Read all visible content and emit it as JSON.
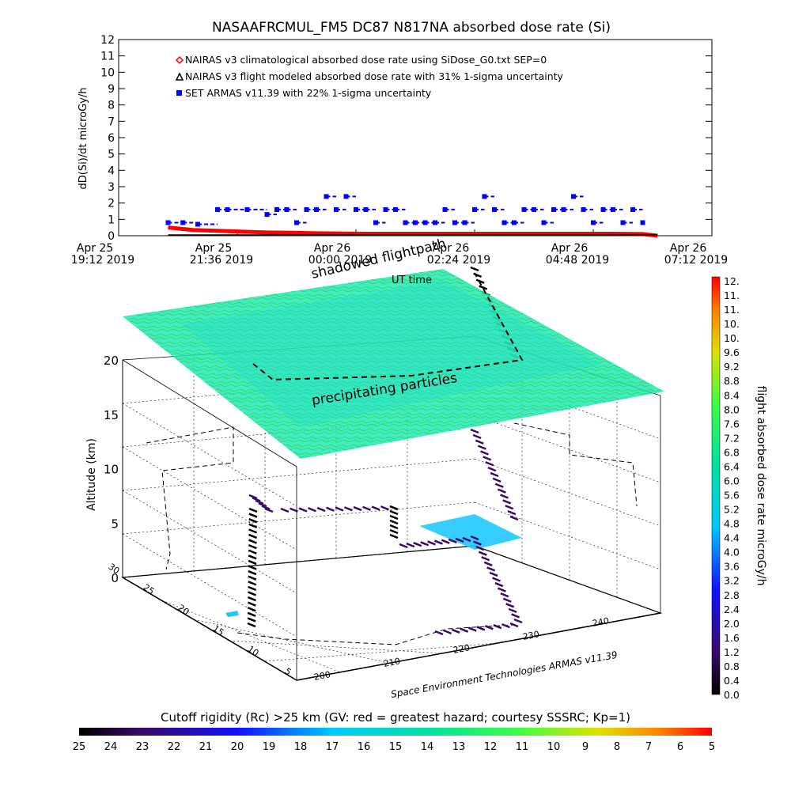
{
  "chart_data": [
    {
      "type": "scatter",
      "title": "NASAAFRCMUL_FM5 DC87 N817NA absorbed dose rate (Si)",
      "ylabel": "dD(Si)/dt microGy/h",
      "xlabel": "UT time",
      "ylim": [
        0,
        12
      ],
      "y_ticks": [
        "0",
        "1",
        "2",
        "3",
        "4",
        "5",
        "6",
        "7",
        "8",
        "9",
        "10",
        "11",
        "12"
      ],
      "x_ticks": [
        {
          "line1": "Apr 25",
          "line2": "19:12 2019"
        },
        {
          "line1": "Apr 25",
          "line2": "21:36 2019"
        },
        {
          "line1": "Apr 26",
          "line2": "00:00 2019"
        },
        {
          "line1": "Apr 26",
          "line2": "02:24 2019"
        },
        {
          "line1": "Apr 26",
          "line2": "04:48 2019"
        },
        {
          "line1": "Apr 26",
          "line2": "07:12 2019"
        }
      ],
      "xlim_hours_from_first_tick": [
        0,
        12
      ],
      "legend": [
        {
          "label": "NAIRAS v3 climatological absorbed dose rate using SiDose_G0.txt SEP=0",
          "color": "#ff0000",
          "marker": "diamond"
        },
        {
          "label": "NAIRAS v3 flight modeled absorbed dose rate with 31% 1-sigma uncertainty",
          "color": "#000000",
          "marker": "triangle"
        },
        {
          "label": "SET ARMAS v11.39 with 22% 1-sigma uncertainty",
          "color": "#0000ff",
          "marker": "square"
        }
      ],
      "legend_position": "top-left",
      "series": [
        {
          "name": "SET ARMAS v11.39 with 22% 1-sigma uncertainty",
          "color": "#0000ff",
          "x_hours": [
            1.0,
            1.3,
            1.6,
            2.0,
            2.2,
            2.6,
            3.0,
            3.2,
            3.4,
            3.6,
            3.8,
            4.0,
            4.2,
            4.4,
            4.6,
            4.8,
            5.0,
            5.2,
            5.4,
            5.6,
            5.8,
            6.0,
            6.2,
            6.4,
            6.6,
            6.8,
            7.0,
            7.2,
            7.4,
            7.6,
            7.8,
            8.0,
            8.2,
            8.4,
            8.6,
            8.8,
            9.0,
            9.2,
            9.4,
            9.6,
            9.8,
            10.0,
            10.2,
            10.4,
            10.6
          ],
          "y": [
            0.8,
            0.8,
            0.7,
            1.6,
            1.6,
            1.6,
            1.3,
            1.6,
            1.6,
            0.8,
            1.6,
            1.6,
            2.4,
            1.6,
            2.4,
            1.6,
            1.6,
            0.8,
            1.6,
            1.6,
            0.8,
            0.8,
            0.8,
            0.8,
            1.6,
            0.8,
            0.8,
            1.6,
            2.4,
            1.6,
            0.8,
            0.8,
            1.6,
            1.6,
            0.8,
            1.6,
            1.6,
            2.4,
            1.6,
            0.8,
            1.6,
            1.6,
            0.8,
            1.6,
            0.8
          ]
        },
        {
          "name": "NAIRAS v3 climatological absorbed dose rate using SiDose_G0.txt SEP=0",
          "color": "#ff0000",
          "x_hours": [
            1.0,
            1.5,
            2.0,
            2.5,
            3.0,
            3.5,
            4.0,
            5.0,
            6.0,
            7.0,
            8.0,
            9.0,
            10.0,
            10.6,
            10.9
          ],
          "y": [
            0.5,
            0.35,
            0.3,
            0.25,
            0.2,
            0.18,
            0.15,
            0.12,
            0.12,
            0.12,
            0.12,
            0.12,
            0.12,
            0.1,
            0.0
          ]
        },
        {
          "name": "NAIRAS v3 flight modeled absorbed dose rate with 31% 1-sigma uncertainty",
          "color": "#000000",
          "x_hours": [
            1.0,
            3.0,
            5.0,
            7.0,
            9.0,
            10.9
          ],
          "y": [
            0.05,
            0.05,
            0.05,
            0.05,
            0.05,
            0.05
          ]
        }
      ]
    },
    {
      "type": "3d-scatter",
      "zlabel": "Altitude (km)",
      "z_ticks": [
        "0",
        "5",
        "10",
        "15",
        "20"
      ],
      "zlim": [
        0,
        20
      ],
      "x_ticks": [
        "200",
        "210",
        "220",
        "230",
        "240"
      ],
      "y_ticks": [
        "5",
        "10",
        "15",
        "20",
        "25",
        "30"
      ],
      "annotations": [
        "shadowed flightpath",
        "UT time",
        "precipitating particles"
      ],
      "axis_credit": "Space Environment Technologies ARMAS v11.39",
      "colorbar": {
        "label": "flight absorbed dose rate microGy/h",
        "ticks": [
          "12.",
          "11.",
          "11.",
          "10.",
          "10.",
          "9.6",
          "9.2",
          "8.8",
          "8.4",
          "8.0",
          "7.6",
          "7.2",
          "6.8",
          "6.4",
          "6.0",
          "5.6",
          "5.2",
          "4.8",
          "4.4",
          "4.0",
          "3.6",
          "3.2",
          "2.8",
          "2.4",
          "2.0",
          "1.6",
          "1.2",
          "0.8",
          "0.4",
          "0.0"
        ],
        "range": [
          0,
          12
        ]
      }
    },
    {
      "type": "colorbar",
      "title": "Cutoff rigidity (Rc) >25 km (GV: red = greatest hazard; courtesy SSSRC; Kp=1)",
      "ticks": [
        "25",
        "24",
        "23",
        "22",
        "21",
        "20",
        "19",
        "18",
        "17",
        "16",
        "15",
        "14",
        "13",
        "12",
        "11",
        "10",
        "9",
        "8",
        "7",
        "6",
        "5"
      ]
    }
  ]
}
